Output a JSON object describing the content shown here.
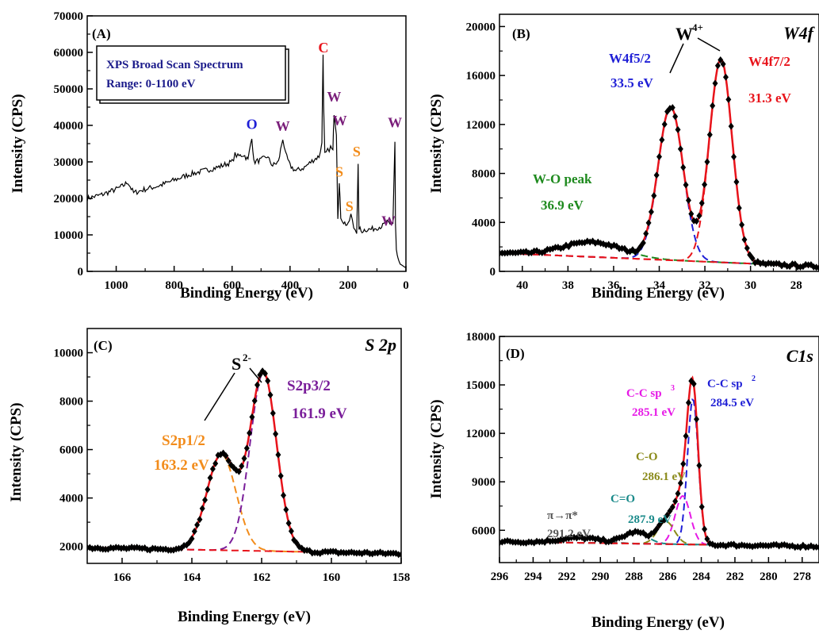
{
  "chart_data": [
    {
      "id": "A",
      "type": "line",
      "panel_label": "(A)",
      "xlabel": "Binding Energy (eV)",
      "ylabel": "Intensity (CPS)",
      "xlim": [
        1100,
        0
      ],
      "ylim": [
        0,
        70000
      ],
      "xticks": [
        1000,
        800,
        600,
        400,
        200,
        0
      ],
      "yticks": [
        0,
        10000,
        20000,
        30000,
        40000,
        50000,
        60000,
        70000
      ],
      "info_box": [
        "XPS Broad Scan Spectrum",
        "Range: 0-1100 eV"
      ],
      "peak_labels": [
        {
          "text": "C",
          "x": 285,
          "y": 60000,
          "color": "#e8141b"
        },
        {
          "text": "O",
          "x": 532,
          "y": 39000,
          "color": "#1f1fd6"
        },
        {
          "text": "W",
          "x": 425,
          "y": 38500,
          "color": "#7a1e7a"
        },
        {
          "text": "W",
          "x": 248,
          "y": 46500,
          "color": "#7a1e7a"
        },
        {
          "text": "W",
          "x": 228,
          "y": 40000,
          "color": "#7a1e7a"
        },
        {
          "text": "W",
          "x": 38,
          "y": 39500,
          "color": "#7a1e7a"
        },
        {
          "text": "W",
          "x": 60,
          "y": 12500,
          "color": "#7a1e7a"
        },
        {
          "text": "S",
          "x": 170,
          "y": 31500,
          "color": "#f28c1b"
        },
        {
          "text": "S",
          "x": 230,
          "y": 26000,
          "color": "#f28c1b"
        },
        {
          "text": "S",
          "x": 195,
          "y": 16500,
          "color": "#f28c1b"
        }
      ],
      "series": [
        {
          "values_x": [
            1100,
            1050,
            1000,
            975,
            960,
            940,
            900,
            850,
            800,
            750,
            700,
            650,
            600,
            590,
            580,
            560,
            545,
            532,
            525,
            500,
            480,
            460,
            440,
            425,
            415,
            400,
            380,
            350,
            320,
            300,
            290,
            286,
            284,
            280,
            270,
            260,
            252,
            248,
            240,
            235,
            230,
            225,
            215,
            200,
            190,
            180,
            170,
            165,
            162,
            155,
            140,
            120,
            100,
            80,
            65,
            55,
            45,
            38,
            36,
            33,
            30,
            25,
            20,
            10,
            5,
            0
          ],
          "values_y": [
            20000,
            21000,
            22500,
            23500,
            24500,
            21500,
            22500,
            23500,
            25000,
            26500,
            27500,
            28500,
            30000,
            32000,
            31500,
            32000,
            30500,
            37000,
            30000,
            30500,
            31500,
            29000,
            30000,
            36500,
            32000,
            29000,
            27500,
            28500,
            30500,
            31500,
            35000,
            60000,
            45000,
            32000,
            33000,
            34000,
            33000,
            43500,
            38000,
            15000,
            24000,
            15000,
            13500,
            12500,
            15500,
            12000,
            11000,
            29000,
            12000,
            11000,
            11500,
            11500,
            12000,
            12500,
            13500,
            12500,
            13000,
            35500,
            13000,
            6000,
            4500,
            3000,
            2000,
            1500,
            1200,
            1000
          ]
        }
      ]
    },
    {
      "id": "B",
      "type": "line",
      "panel_label": "(B)",
      "corner_label": "W4f",
      "xlabel": "Binding Energy (eV)",
      "ylabel": "Intensity (CPS)",
      "xlim": [
        41,
        27
      ],
      "ylim": [
        0,
        21000
      ],
      "xticks": [
        40,
        38,
        36,
        34,
        32,
        30,
        28
      ],
      "yticks": [
        0,
        4000,
        8000,
        12000,
        16000,
        20000
      ],
      "annotations": [
        {
          "text": "W4f5/2",
          "line2": "33.5 eV",
          "x": 33.5,
          "color": "#1f1fd6"
        },
        {
          "text": "W4f7/2",
          "line2": "31.3 eV",
          "x": 31.3,
          "color": "#e8141b"
        },
        {
          "text": "W-O peak",
          "line2": "36.9 eV",
          "x": 36.9,
          "color": "#1e8a1e"
        },
        {
          "text": "W",
          "sup": "4+",
          "color": "#000000"
        }
      ],
      "peaks": [
        {
          "name": "W4f5/2",
          "center": 33.5,
          "height": 12500,
          "width": 0.55,
          "color": "#1f1fd6"
        },
        {
          "name": "W4f7/2",
          "center": 31.3,
          "height": 16600,
          "width": 0.5,
          "color": "#e8141b"
        },
        {
          "name": "W-O",
          "center": 36.9,
          "height": 1200,
          "width": 1.3,
          "color": "#1e8a1e"
        }
      ],
      "background": {
        "start": 1500,
        "end": 400
      }
    },
    {
      "id": "C",
      "type": "line",
      "panel_label": "(C)",
      "corner_label": "S 2p",
      "xlabel": "Binding Energy (eV)",
      "ylabel": "Intensity (CPS)",
      "xlim": [
        167,
        158
      ],
      "ylim": [
        1300,
        11000
      ],
      "xticks": [
        166,
        164,
        162,
        160,
        158
      ],
      "yticks": [
        2000,
        4000,
        6000,
        8000,
        10000
      ],
      "annotations": [
        {
          "text": "S2p1/2",
          "line2": "163.2 eV",
          "x": 163.2,
          "color": "#f28c1b"
        },
        {
          "text": "S2p3/2",
          "line2": "161.9 eV",
          "x": 161.9,
          "color": "#7a1e9a"
        },
        {
          "text": "S",
          "sup": "2-",
          "color": "#000000"
        }
      ],
      "peaks": [
        {
          "name": "S2p1/2",
          "center": 163.15,
          "height": 3950,
          "width": 0.42,
          "color": "#f28c1b"
        },
        {
          "name": "S2p3/2",
          "center": 161.95,
          "height": 7350,
          "width": 0.38,
          "color": "#7a1e9a"
        }
      ],
      "background": {
        "start": 1950,
        "end": 1700
      }
    },
    {
      "id": "D",
      "type": "line",
      "panel_label": "(D)",
      "corner_label": "C1s",
      "xlabel": "Binding Energy (eV)",
      "ylabel": "Intensity (CPS)",
      "xlim": [
        296,
        277
      ],
      "ylim": [
        4000,
        18000
      ],
      "xticks": [
        296,
        294,
        292,
        290,
        288,
        286,
        284,
        282,
        280,
        278
      ],
      "yticks": [
        6000,
        9000,
        12000,
        15000,
        18000
      ],
      "annotations": [
        {
          "text": "C-C sp",
          "sup": "3",
          "line2": "285.1 eV",
          "x": 285.1,
          "color": "#e619e6"
        },
        {
          "text": "C-C sp",
          "sup": "2",
          "line2": "284.5 eV",
          "x": 284.5,
          "color": "#1f1fd6"
        },
        {
          "text": "C-O",
          "line2": "286.1 eV",
          "x": 286.1,
          "color": "#8a8a1a"
        },
        {
          "text": "C=O",
          "line2": "287.9 eV",
          "x": 287.9,
          "color": "#1a8a8a"
        },
        {
          "text": "π→π*",
          "line2": "291.2 eV",
          "x": 291.2,
          "color": "#555555"
        }
      ],
      "peaks": [
        {
          "name": "C-C sp2",
          "center": 284.5,
          "height": 9000,
          "width": 0.32,
          "color": "#1f1fd6"
        },
        {
          "name": "C-C sp3",
          "center": 285.1,
          "height": 3000,
          "width": 0.45,
          "color": "#e619e6"
        },
        {
          "name": "C-O",
          "center": 286.1,
          "height": 1400,
          "width": 0.5,
          "color": "#8a8a1a"
        },
        {
          "name": "C=O",
          "center": 287.9,
          "height": 700,
          "width": 0.7,
          "color": "#1a8a8a"
        },
        {
          "name": "pi-pi*",
          "center": 291.2,
          "height": 300,
          "width": 1.2,
          "color": "#555555"
        }
      ],
      "background": {
        "start": 5300,
        "end": 5000
      }
    }
  ]
}
